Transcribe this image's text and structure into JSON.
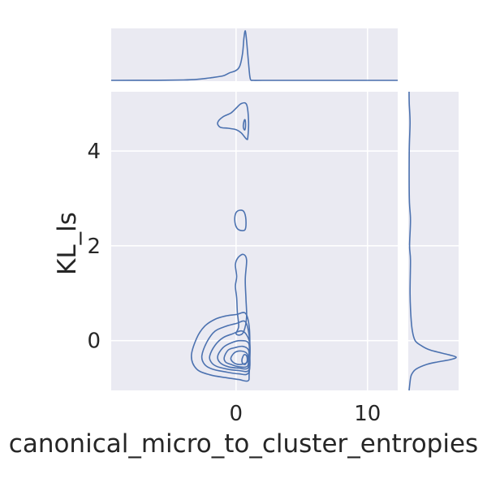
{
  "chart_data": {
    "type": "kde-joint",
    "title": "",
    "xlabel": "canonical_micro_to_cluster_entropies",
    "ylabel": "KL_ls",
    "xlim": [
      -9.5,
      12.3
    ],
    "ylim": [
      -1.05,
      5.25
    ],
    "x_ticks": [
      0,
      10
    ],
    "y_ticks": [
      0,
      2,
      4
    ],
    "grid": true,
    "background_color": "#eaeaf2",
    "line_color": "#4c72b0",
    "contours": [
      {
        "level": 1,
        "points": [
          [
            -3.4,
            -0.33
          ],
          [
            -3.0,
            0.05
          ],
          [
            -2.4,
            0.3
          ],
          [
            -1.6,
            0.45
          ],
          [
            -0.8,
            0.52
          ],
          [
            0.0,
            0.55
          ],
          [
            0.7,
            0.58
          ],
          [
            1.0,
            0.3
          ],
          [
            1.05,
            -0.2
          ],
          [
            1.0,
            -0.7
          ],
          [
            0.9,
            -0.85
          ],
          [
            0.2,
            -0.82
          ],
          [
            -0.8,
            -0.78
          ],
          [
            -2.0,
            -0.72
          ],
          [
            -3.0,
            -0.6
          ]
        ]
      },
      {
        "level": 2,
        "points": [
          [
            -2.6,
            -0.32
          ],
          [
            -2.2,
            -0.02
          ],
          [
            -1.6,
            0.2
          ],
          [
            -0.8,
            0.3
          ],
          [
            0.0,
            0.36
          ],
          [
            0.7,
            0.4
          ],
          [
            1.0,
            0.1
          ],
          [
            1.05,
            -0.3
          ],
          [
            0.95,
            -0.68
          ],
          [
            0.2,
            -0.7
          ],
          [
            -0.8,
            -0.66
          ],
          [
            -1.8,
            -0.6
          ],
          [
            -2.4,
            -0.5
          ]
        ]
      },
      {
        "level": 3,
        "points": [
          [
            -2.0,
            -0.32
          ],
          [
            -1.6,
            -0.1
          ],
          [
            -1.0,
            0.06
          ],
          [
            -0.3,
            0.14
          ],
          [
            0.5,
            0.2
          ],
          [
            1.0,
            0.0
          ],
          [
            1.05,
            -0.35
          ],
          [
            0.95,
            -0.63
          ],
          [
            0.2,
            -0.63
          ],
          [
            -0.7,
            -0.6
          ],
          [
            -1.5,
            -0.54
          ],
          [
            -1.9,
            -0.45
          ]
        ]
      },
      {
        "level": 4,
        "points": [
          [
            -1.4,
            -0.33
          ],
          [
            -1.0,
            -0.15
          ],
          [
            -0.4,
            -0.05
          ],
          [
            0.3,
            0.0
          ],
          [
            0.95,
            -0.05
          ],
          [
            1.0,
            -0.35
          ],
          [
            0.9,
            -0.58
          ],
          [
            0.2,
            -0.58
          ],
          [
            -0.6,
            -0.55
          ],
          [
            -1.2,
            -0.47
          ]
        ]
      },
      {
        "level": 5,
        "points": [
          [
            -0.9,
            -0.35
          ],
          [
            -0.6,
            -0.2
          ],
          [
            -0.1,
            -0.15
          ],
          [
            0.5,
            -0.12
          ],
          [
            0.95,
            -0.2
          ],
          [
            0.95,
            -0.45
          ],
          [
            0.8,
            -0.55
          ],
          [
            0.2,
            -0.55
          ],
          [
            -0.4,
            -0.5
          ],
          [
            -0.8,
            -0.45
          ]
        ]
      },
      {
        "level": 6,
        "points": [
          [
            -0.4,
            -0.38
          ],
          [
            -0.1,
            -0.25
          ],
          [
            0.4,
            -0.22
          ],
          [
            0.85,
            -0.28
          ],
          [
            0.85,
            -0.45
          ],
          [
            0.4,
            -0.5
          ],
          [
            -0.1,
            -0.48
          ]
        ]
      },
      {
        "level": 7,
        "points": [
          [
            0.45,
            -0.4
          ],
          [
            0.6,
            -0.3
          ],
          [
            0.8,
            -0.32
          ],
          [
            0.85,
            -0.42
          ],
          [
            0.7,
            -0.5
          ],
          [
            0.5,
            -0.48
          ]
        ]
      },
      {
        "level": 1,
        "points": [
          [
            0.0,
            0.15
          ],
          [
            0.2,
            0.3
          ],
          [
            0.1,
            0.6
          ],
          [
            0.05,
            0.9
          ],
          [
            -0.05,
            1.15
          ],
          [
            0.05,
            1.35
          ],
          [
            -0.05,
            1.6
          ],
          [
            0.15,
            1.75
          ],
          [
            0.55,
            1.82
          ],
          [
            0.8,
            1.7
          ],
          [
            0.7,
            1.3
          ],
          [
            0.75,
            0.9
          ],
          [
            0.8,
            0.5
          ],
          [
            0.6,
            0.2
          ],
          [
            0.3,
            0.12
          ]
        ]
      },
      {
        "level": 1,
        "points": [
          [
            -0.1,
            2.55
          ],
          [
            0.0,
            2.7
          ],
          [
            0.3,
            2.75
          ],
          [
            0.6,
            2.72
          ],
          [
            0.75,
            2.55
          ],
          [
            0.7,
            2.35
          ],
          [
            0.4,
            2.32
          ],
          [
            0.05,
            2.38
          ]
        ]
      },
      {
        "level": 1,
        "points": [
          [
            -1.4,
            4.6
          ],
          [
            -1.0,
            4.72
          ],
          [
            -0.4,
            4.8
          ],
          [
            0.0,
            4.9
          ],
          [
            0.4,
            5.0
          ],
          [
            0.8,
            4.98
          ],
          [
            0.95,
            4.65
          ],
          [
            0.9,
            4.3
          ],
          [
            0.8,
            4.25
          ],
          [
            0.4,
            4.38
          ],
          [
            0.0,
            4.45
          ],
          [
            -0.6,
            4.48
          ],
          [
            -1.2,
            4.5
          ]
        ]
      },
      {
        "level": 2,
        "points": [
          [
            0.55,
            4.52
          ],
          [
            0.6,
            4.62
          ],
          [
            0.68,
            4.66
          ],
          [
            0.72,
            4.55
          ],
          [
            0.68,
            4.45
          ],
          [
            0.6,
            4.46
          ]
        ]
      }
    ],
    "x_marginal": {
      "x": [
        -9.5,
        -6,
        -4,
        -3,
        -2,
        -1,
        -0.5,
        0,
        0.3,
        0.5,
        0.6,
        0.7,
        0.8,
        1.0,
        1.1,
        1.3,
        2,
        5,
        12.3
      ],
      "density": [
        0.0,
        0.002,
        0.008,
        0.02,
        0.05,
        0.09,
        0.15,
        0.2,
        0.3,
        0.55,
        0.85,
        1.0,
        0.8,
        0.2,
        0.02,
        0.0,
        0.0,
        0.0,
        0.0
      ]
    },
    "y_marginal": {
      "y": [
        -1.05,
        -0.8,
        -0.7,
        -0.6,
        -0.5,
        -0.45,
        -0.4,
        -0.35,
        -0.3,
        -0.2,
        -0.1,
        0.0,
        0.2,
        0.5,
        1.0,
        1.7,
        2.0,
        2.55,
        3.0,
        4.0,
        4.6,
        5.0,
        5.25
      ],
      "density": [
        0.0,
        0.03,
        0.06,
        0.15,
        0.38,
        0.6,
        0.88,
        1.0,
        0.85,
        0.45,
        0.25,
        0.13,
        0.07,
        0.04,
        0.02,
        0.03,
        0.01,
        0.03,
        0.005,
        0.004,
        0.02,
        0.004,
        0.0
      ]
    }
  }
}
